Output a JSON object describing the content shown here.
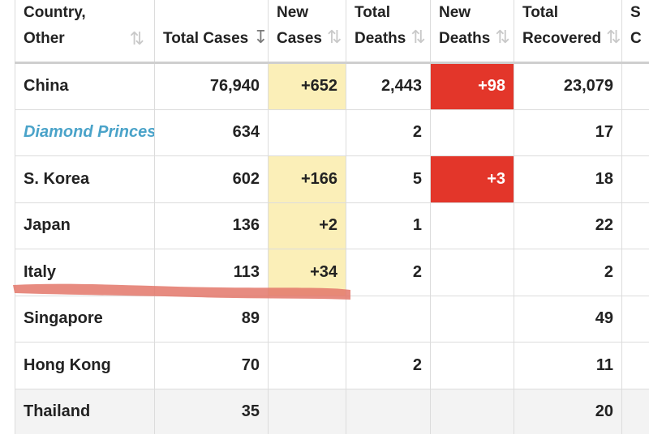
{
  "headers": {
    "country_line1": "Country,",
    "country_line2": "Other",
    "total_cases": "Total Cases",
    "new_cases_line1": "New",
    "new_cases_line2": "Cases",
    "total_deaths_line1": "Total",
    "total_deaths_line2": "Deaths",
    "new_deaths_line1": "New",
    "new_deaths_line2": "Deaths",
    "total_recovered_line1": "Total",
    "total_recovered_line2": "Recovered",
    "partial_col_line1": "S",
    "partial_col_line2": "C"
  },
  "icons": {
    "sort_unsorted": "sort-updown-icon",
    "sort_active": "sort-descending-icon"
  },
  "colors": {
    "new_cases_bg": "#fbefb8",
    "new_deaths_bg": "#e3362a",
    "special_country": "#4aa3c9",
    "highlight_stroke": "#e3776a"
  },
  "rows": [
    {
      "country": "China",
      "total_cases": "76,940",
      "new_cases": "+652",
      "total_deaths": "2,443",
      "new_deaths": "+98",
      "total_recovered": "23,079"
    },
    {
      "country": "Diamond Princess",
      "total_cases": "634",
      "new_cases": "",
      "total_deaths": "2",
      "new_deaths": "",
      "total_recovered": "17"
    },
    {
      "country": "S. Korea",
      "total_cases": "602",
      "new_cases": "+166",
      "total_deaths": "5",
      "new_deaths": "+3",
      "total_recovered": "18"
    },
    {
      "country": "Japan",
      "total_cases": "136",
      "new_cases": "+2",
      "total_deaths": "1",
      "new_deaths": "",
      "total_recovered": "22"
    },
    {
      "country": "Italy",
      "total_cases": "113",
      "new_cases": "+34",
      "total_deaths": "2",
      "new_deaths": "",
      "total_recovered": "2"
    },
    {
      "country": "Singapore",
      "total_cases": "89",
      "new_cases": "",
      "total_deaths": "",
      "new_deaths": "",
      "total_recovered": "49"
    },
    {
      "country": "Hong Kong",
      "total_cases": "70",
      "new_cases": "",
      "total_deaths": "2",
      "new_deaths": "",
      "total_recovered": "11"
    },
    {
      "country": "Thailand",
      "total_cases": "35",
      "new_cases": "",
      "total_deaths": "",
      "new_deaths": "",
      "total_recovered": "20"
    }
  ]
}
